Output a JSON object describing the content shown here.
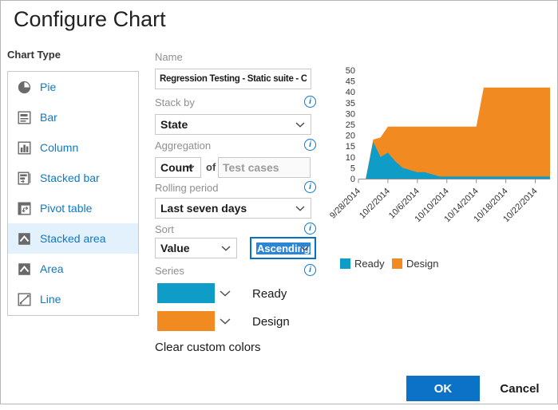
{
  "dialog": {
    "title": "Configure Chart"
  },
  "chart_type": {
    "label": "Chart Type",
    "items": [
      {
        "label": "Pie",
        "icon": "pie-icon",
        "selected": false
      },
      {
        "label": "Bar",
        "icon": "bar-icon",
        "selected": false
      },
      {
        "label": "Column",
        "icon": "column-icon",
        "selected": false
      },
      {
        "label": "Stacked bar",
        "icon": "stacked-bar-icon",
        "selected": false
      },
      {
        "label": "Pivot table",
        "icon": "pivot-table-icon",
        "selected": false
      },
      {
        "label": "Stacked area",
        "icon": "stacked-area-icon",
        "selected": true
      },
      {
        "label": "Area",
        "icon": "area-icon",
        "selected": false
      },
      {
        "label": "Line",
        "icon": "line-icon",
        "selected": false
      }
    ]
  },
  "form": {
    "name": {
      "label": "Name",
      "value": "Regression Testing - Static suite - Ch"
    },
    "stack_by": {
      "label": "Stack by",
      "value": "State"
    },
    "aggregation": {
      "label": "Aggregation",
      "value": "Count",
      "of_label": "of",
      "field_value": "Test cases"
    },
    "rolling_period": {
      "label": "Rolling period",
      "value": "Last seven days"
    },
    "sort": {
      "label": "Sort",
      "value": "Value",
      "direction": "Ascending"
    },
    "series": {
      "label": "Series",
      "items": [
        {
          "name": "Ready",
          "color": "#0f9dc8"
        },
        {
          "name": "Design",
          "color": "#f28a22"
        }
      ]
    },
    "clear_colors_label": "Clear custom colors",
    "info_icon_glyph": "i"
  },
  "chart_data": {
    "type": "area",
    "stacked": true,
    "x": [
      "9/28/2014",
      "9/29/2014",
      "9/30/2014",
      "10/1/2014",
      "10/2/2014",
      "10/3/2014",
      "10/4/2014",
      "10/5/2014",
      "10/6/2014",
      "10/7/2014",
      "10/8/2014",
      "10/9/2014",
      "10/10/2014",
      "10/11/2014",
      "10/12/2014",
      "10/13/2014",
      "10/14/2014",
      "10/15/2014",
      "10/16/2014",
      "10/17/2014",
      "10/18/2014",
      "10/19/2014",
      "10/20/2014",
      "10/21/2014",
      "10/22/2014",
      "10/23/2014",
      "10/24/2014"
    ],
    "series": [
      {
        "name": "Ready",
        "color": "#0f9dc8",
        "values": [
          0,
          0,
          17,
          10,
          12,
          8,
          5,
          4,
          3,
          3,
          2,
          1,
          1,
          1,
          1,
          1,
          1,
          1,
          1,
          1,
          1,
          1,
          1,
          1,
          1,
          1,
          1
        ]
      },
      {
        "name": "Design",
        "color": "#f28a22",
        "values": [
          0,
          0,
          1,
          9,
          12,
          16,
          19,
          20,
          21,
          21,
          22,
          23,
          23,
          23,
          23,
          23,
          23,
          41,
          41,
          41,
          41,
          41,
          41,
          41,
          41,
          41,
          41
        ]
      }
    ],
    "ylim": [
      0,
      50
    ],
    "yticks": [
      0,
      5,
      10,
      15,
      20,
      25,
      30,
      35,
      40,
      45,
      50
    ],
    "xticks": [
      {
        "day": 0,
        "label": "9/28/2014"
      },
      {
        "day": 4,
        "label": "10/2/2014"
      },
      {
        "day": 8,
        "label": "10/6/2014"
      },
      {
        "day": 12,
        "label": "10/10/2014"
      },
      {
        "day": 16,
        "label": "10/14/2014"
      },
      {
        "day": 20,
        "label": "10/18/2014"
      },
      {
        "day": 24,
        "label": "10/22/2014"
      }
    ],
    "grid": false,
    "legend_position": "bottom-left"
  },
  "footer": {
    "ok_label": "OK",
    "cancel_label": "Cancel"
  },
  "colors": {
    "accent_blue": "#0b72c8",
    "link_blue": "#1278be",
    "teal": "#0f9dc8",
    "orange": "#f28a22",
    "selected_item_bg": "#e2f1fb",
    "selection_highlight": "#2d85d6",
    "border_gray": "#c8c8c8"
  }
}
